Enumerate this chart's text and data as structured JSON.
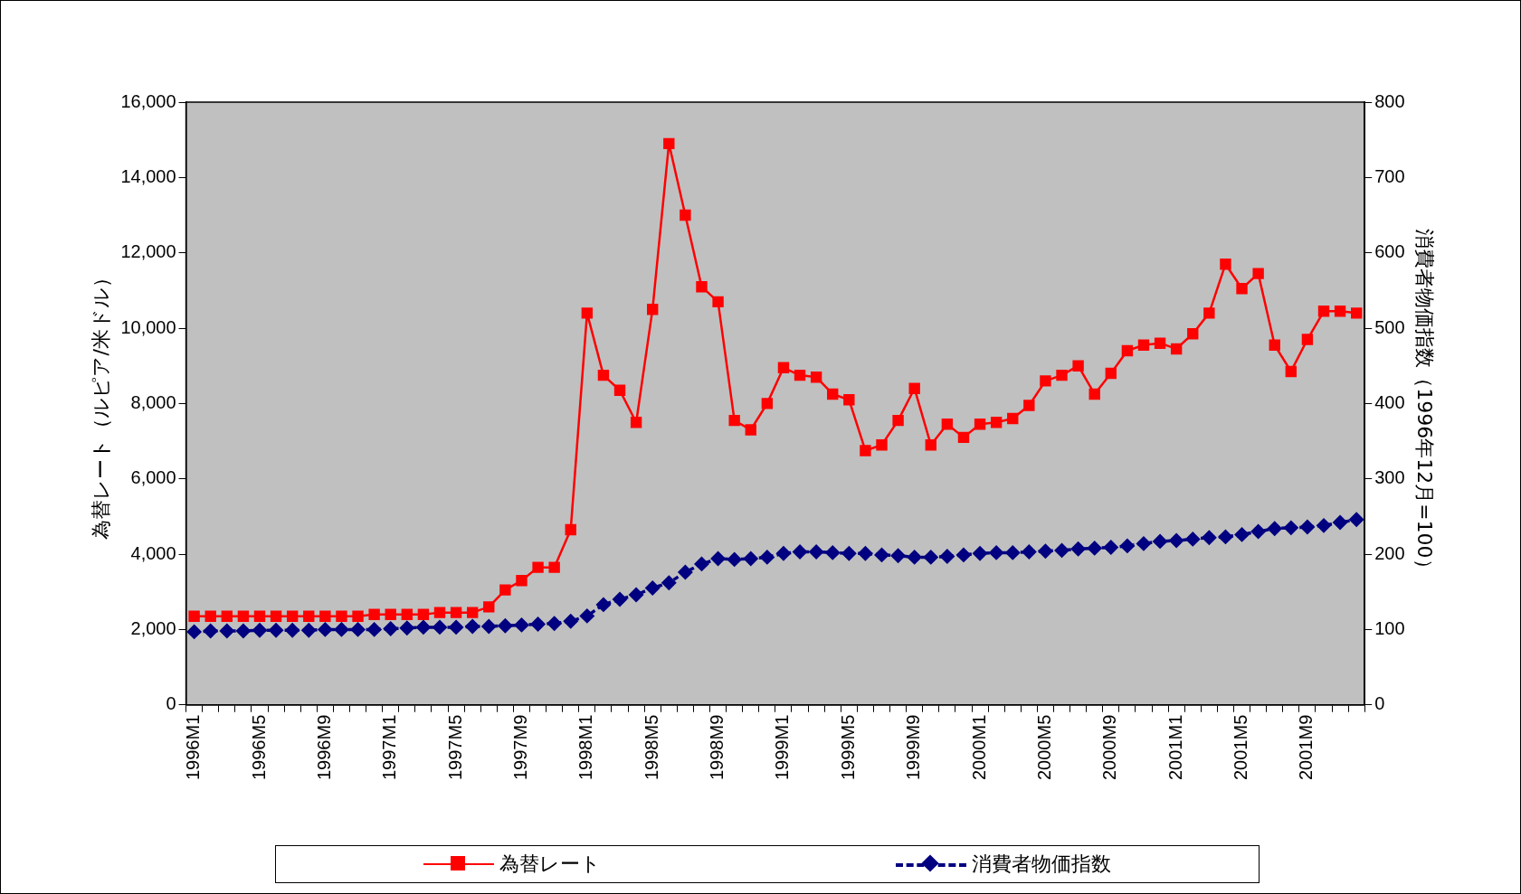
{
  "chart_data": {
    "type": "line",
    "categories": [
      "1996M1",
      null,
      null,
      null,
      "1996M5",
      null,
      null,
      null,
      "1996M9",
      null,
      null,
      null,
      "1997M1",
      null,
      null,
      null,
      "1997M5",
      null,
      null,
      null,
      "1997M9",
      null,
      null,
      null,
      "1998M1",
      null,
      null,
      null,
      "1998M5",
      null,
      null,
      null,
      "1998M9",
      null,
      null,
      null,
      "1999M1",
      null,
      null,
      null,
      "1999M5",
      null,
      null,
      null,
      "1999M9",
      null,
      null,
      null,
      "2000M1",
      null,
      null,
      null,
      "2000M5",
      null,
      null,
      null,
      "2000M9",
      null,
      null,
      null,
      "2001M1",
      null,
      null,
      null,
      "2001M5",
      null,
      null,
      null,
      "2001M9",
      null,
      null,
      null
    ],
    "series": [
      {
        "name": "為替レート",
        "color": "#ff0000",
        "marker": "square",
        "line_style": "solid",
        "values": [
          2350,
          2350,
          2350,
          2350,
          2350,
          2350,
          2350,
          2350,
          2350,
          2350,
          2350,
          2400,
          2400,
          2400,
          2400,
          2450,
          2450,
          2450,
          2600,
          3050,
          3300,
          3650,
          3650,
          4650,
          10400,
          8750,
          8350,
          7500,
          10500,
          14900,
          13000,
          11100,
          10700,
          7550,
          7300,
          8000,
          8950,
          8750,
          8700,
          8250,
          8100,
          6750,
          6900,
          7550,
          8400,
          6900,
          7450,
          7100,
          7450,
          7500,
          7600,
          7950,
          8600,
          8750,
          9000,
          8250,
          8800,
          9400,
          9550,
          9600,
          9450,
          9850,
          10400,
          11700,
          11050,
          11450,
          9550,
          8850,
          9700,
          10450,
          10450,
          10400
        ]
      },
      {
        "name": "消費者物価指数",
        "color": "#000080",
        "marker": "diamond",
        "line_style": "dashed",
        "axis": "y2",
        "values": [
          97,
          98,
          98,
          98,
          99,
          99,
          99,
          99,
          100,
          100,
          100,
          100,
          101,
          102,
          103,
          103,
          103,
          104,
          104,
          105,
          106,
          107,
          108,
          111,
          118,
          133,
          140,
          146,
          155,
          162,
          176,
          187,
          194,
          193,
          194,
          196,
          201,
          203,
          203,
          202,
          201,
          201,
          199,
          198,
          196,
          196,
          197,
          199,
          201,
          202,
          202,
          203,
          204,
          205,
          207,
          208,
          209,
          211,
          214,
          217,
          218,
          220,
          222,
          223,
          226,
          230,
          234,
          235,
          236,
          238,
          242,
          246
        ]
      }
    ],
    "ylabel": "為替レート（ルピア/米ドル）",
    "y2label": "消費者物価指数（1996年12月=100）",
    "ylim": [
      0,
      16000
    ],
    "yticks": [
      0,
      {
        "value": 2000,
        "label": "2,000"
      },
      {
        "value": 4000,
        "label": "4,000"
      },
      {
        "value": 6000,
        "label": "6,000"
      },
      {
        "value": 8000,
        "label": "8,000"
      },
      {
        "value": 10000,
        "label": "10,000"
      },
      {
        "value": 12000,
        "label": "12,000"
      },
      {
        "value": 14000,
        "label": "14,000"
      },
      {
        "value": 16000,
        "label": "16,000"
      }
    ],
    "y2lim": [
      0,
      800
    ],
    "y2ticks": [
      0,
      100,
      200,
      300,
      400,
      500,
      600,
      700,
      800
    ],
    "grid": false,
    "legend": "bottom"
  }
}
